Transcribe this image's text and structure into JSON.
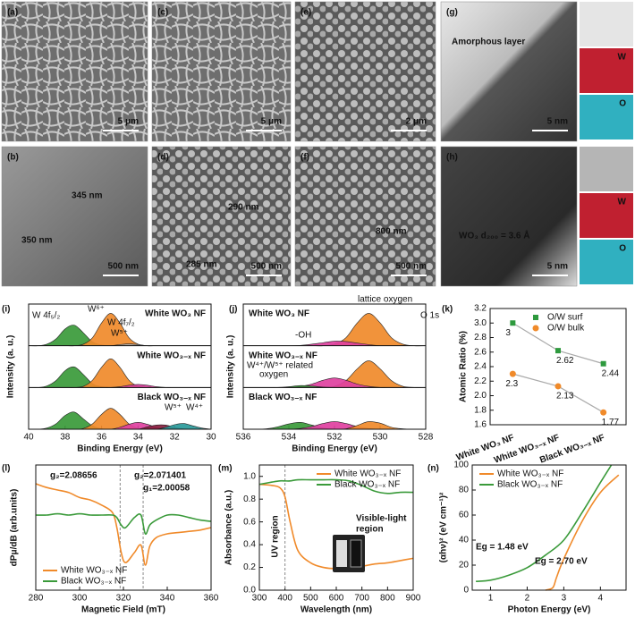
{
  "image_panels": [
    {
      "label": "(a)",
      "scale_bar": "5 μm",
      "annotations": []
    },
    {
      "label": "(c)",
      "scale_bar": "5 μm",
      "annotations": []
    },
    {
      "label": "(e)",
      "scale_bar": "2 μm",
      "annotations": []
    },
    {
      "label": "(g)",
      "scale_bar": "5 nm",
      "annotations": [
        "Amorphous layer"
      ],
      "side_labels": [
        "W",
        "O"
      ]
    },
    {
      "label": "(b)",
      "scale_bar": "500 nm",
      "annotations": [
        "345 nm",
        "350 nm"
      ]
    },
    {
      "label": "(d)",
      "scale_bar": "500 nm",
      "annotations": [
        "290 nm",
        "285 nm"
      ]
    },
    {
      "label": "(f)",
      "scale_bar": "500 nm",
      "annotations": [
        "800 nm"
      ]
    },
    {
      "label": "(h)",
      "scale_bar": "5 nm",
      "annotations": [
        "WO₃ d₂₀₀ = 3.6 Å"
      ],
      "side_labels": [
        "W",
        "O"
      ]
    }
  ],
  "chart_data": [
    {
      "type": "area",
      "panel_label": "(i)",
      "xlabel": "Binding Energy (eV)",
      "ylabel": "Intensity (a. u.)",
      "x": [
        40,
        39.5,
        39,
        38.5,
        38,
        37.5,
        37,
        36.5,
        36,
        35.5,
        35,
        34.5,
        34,
        33.5,
        33,
        32.5,
        32,
        31.5,
        31,
        30.5,
        30
      ],
      "xlim": [
        40,
        30
      ],
      "xticks": [
        40,
        38,
        36,
        34,
        32,
        30
      ],
      "ylim": [
        0,
        1
      ],
      "panels": [
        {
          "label": "White WO₃ NF",
          "annotations": [
            "W 4f₅/₂",
            "W⁶⁺",
            "W 4f₇/₂",
            "W⁵⁺"
          ],
          "series": [
            {
              "color": "#3a9a3a",
              "values": [
                0,
                0,
                0.04,
                0.18,
                0.44,
                0.54,
                0.34,
                0.1,
                0.02,
                0,
                0,
                0,
                0,
                0,
                0,
                0,
                0,
                0,
                0,
                0,
                0
              ]
            },
            {
              "color": "#f08a2a",
              "values": [
                0,
                0,
                0,
                0,
                0,
                0,
                0.04,
                0.21,
                0.6,
                0.85,
                0.6,
                0.21,
                0.04,
                0,
                0,
                0,
                0,
                0,
                0,
                0,
                0
              ]
            },
            {
              "color": "#b0b0b0",
              "values": [
                0,
                0,
                0,
                0,
                0,
                0,
                0,
                0,
                0,
                0,
                0.03,
                0.05,
                0.03,
                0,
                0,
                0,
                0,
                0,
                0,
                0,
                0
              ]
            }
          ]
        },
        {
          "label": "White WO₃₋ₓ NF",
          "annotations": [],
          "series": [
            {
              "color": "#3a9a3a",
              "values": [
                0,
                0,
                0.04,
                0.18,
                0.44,
                0.54,
                0.34,
                0.1,
                0.02,
                0,
                0,
                0,
                0,
                0,
                0,
                0,
                0,
                0,
                0,
                0,
                0
              ]
            },
            {
              "color": "#f08a2a",
              "values": [
                0,
                0,
                0,
                0,
                0,
                0,
                0.03,
                0.19,
                0.53,
                0.75,
                0.53,
                0.19,
                0.03,
                0,
                0,
                0,
                0,
                0,
                0,
                0,
                0
              ]
            },
            {
              "color": "#e040a0",
              "values": [
                0,
                0,
                0,
                0,
                0,
                0,
                0,
                0,
                0,
                0,
                0.02,
                0.06,
                0.08,
                0.06,
                0.02,
                0,
                0,
                0,
                0,
                0,
                0
              ]
            }
          ]
        },
        {
          "label": "Black WO₃₋ₓ NF",
          "annotations": [
            "W⁵⁺",
            "W⁴⁺"
          ],
          "series": [
            {
              "color": "#3a9a3a",
              "values": [
                0,
                0,
                0.03,
                0.14,
                0.36,
                0.45,
                0.27,
                0.09,
                0.01,
                0,
                0,
                0,
                0,
                0,
                0,
                0,
                0,
                0,
                0,
                0,
                0
              ]
            },
            {
              "color": "#f08a2a",
              "values": [
                0,
                0,
                0,
                0,
                0,
                0,
                0.02,
                0.14,
                0.39,
                0.55,
                0.39,
                0.14,
                0.02,
                0,
                0,
                0,
                0,
                0,
                0,
                0,
                0
              ]
            },
            {
              "color": "#e040a0",
              "values": [
                0,
                0,
                0,
                0,
                0,
                0,
                0,
                0,
                0,
                0,
                0.05,
                0.13,
                0.18,
                0.13,
                0.05,
                0,
                0,
                0,
                0,
                0,
                0
              ]
            },
            {
              "color": "#8b2040",
              "values": [
                0,
                0,
                0,
                0,
                0,
                0,
                0,
                0,
                0,
                0,
                0,
                0,
                0,
                0.06,
                0.11,
                0.11,
                0.05,
                0.01,
                0,
                0,
                0
              ]
            },
            {
              "color": "#2a9a9a",
              "values": [
                0,
                0,
                0,
                0,
                0,
                0,
                0,
                0,
                0,
                0,
                0,
                0,
                0,
                0,
                0,
                0.05,
                0.12,
                0.15,
                0.09,
                0.03,
                0
              ]
            }
          ]
        }
      ]
    },
    {
      "type": "area",
      "panel_label": "(j)",
      "xlabel": "Binding Energy (eV)",
      "ylabel": "Intensity (a. u.)",
      "x": [
        536,
        535.5,
        535,
        534.5,
        534,
        533.5,
        533,
        532.5,
        532,
        531.5,
        531,
        530.5,
        530,
        529.5,
        529,
        528.5,
        528
      ],
      "xlim": [
        536,
        528
      ],
      "xticks": [
        536,
        534,
        532,
        530,
        528
      ],
      "ylim": [
        0,
        1
      ],
      "panels": [
        {
          "label": "White WO₃ NF",
          "annotations": [
            "lattice oxygen",
            "O 1s",
            "-OH"
          ],
          "series": [
            {
              "color": "#f08a2a",
              "values": [
                0,
                0,
                0,
                0,
                0,
                0,
                0,
                0,
                0.04,
                0.21,
                0.6,
                0.85,
                0.6,
                0.21,
                0.04,
                0,
                0
              ]
            },
            {
              "color": "#e040a0",
              "values": [
                0,
                0,
                0,
                0,
                0,
                0.01,
                0.04,
                0.08,
                0.12,
                0.11,
                0.07,
                0.03,
                0,
                0,
                0,
                0,
                0
              ]
            }
          ]
        },
        {
          "label": "White WO₃₋ₓ NF",
          "annotations": [
            "W⁴⁺/W⁵⁺ related",
            "oxygen"
          ],
          "series": [
            {
              "color": "#f08a2a",
              "values": [
                0,
                0,
                0,
                0,
                0,
                0,
                0,
                0,
                0.03,
                0.18,
                0.49,
                0.7,
                0.49,
                0.18,
                0.03,
                0,
                0
              ]
            },
            {
              "color": "#e040a0",
              "values": [
                0,
                0,
                0,
                0,
                0,
                0.03,
                0.09,
                0.19,
                0.25,
                0.19,
                0.09,
                0.03,
                0,
                0,
                0,
                0,
                0
              ]
            },
            {
              "color": "#3a9a3a",
              "values": [
                0,
                0,
                0,
                0,
                0.02,
                0.05,
                0.04,
                0.01,
                0,
                0,
                0,
                0,
                0,
                0,
                0,
                0,
                0
              ]
            }
          ]
        },
        {
          "label": "Black WO₃₋ₓ NF",
          "annotations": [],
          "series": [
            {
              "color": "#3a9a3a",
              "values": [
                0,
                0,
                0.01,
                0.06,
                0.14,
                0.18,
                0.11,
                0.03,
                0,
                0,
                0,
                0,
                0,
                0,
                0,
                0,
                0
              ]
            },
            {
              "color": "#e040a0",
              "values": [
                0,
                0,
                0,
                0,
                0,
                0.02,
                0.07,
                0.15,
                0.2,
                0.15,
                0.07,
                0.02,
                0,
                0,
                0,
                0,
                0
              ]
            },
            {
              "color": "#f08a2a",
              "values": [
                0,
                0,
                0,
                0,
                0,
                0,
                0,
                0,
                0,
                0.01,
                0.1,
                0.2,
                0.16,
                0.05,
                0.01,
                0,
                0
              ]
            }
          ]
        }
      ]
    },
    {
      "type": "category",
      "panel_label": "(k)",
      "ylabel": "Atomic Ratio (%)",
      "categories": [
        "White WO₃ NF",
        "White WO₃₋ₓ NF",
        "Black WO₃₋ₓ NF"
      ],
      "ylim": [
        1.6,
        3.2
      ],
      "yticks": [
        1.6,
        1.8,
        {
          "value": 2,
          "label": "2.0"
        },
        2.2,
        2.4,
        2.6,
        2.8,
        {
          "value": 3,
          "label": "3.0"
        },
        3.2
      ],
      "line_color": "#aaaaaa",
      "legend": "upper right",
      "series": [
        {
          "name": "O/W surf",
          "color": "#2e9a3e",
          "marker": "square",
          "values": [
            3,
            2.62,
            2.44
          ]
        },
        {
          "name": "O/W bulk",
          "color": "#f08a2a",
          "marker": "circle",
          "values": [
            2.3,
            2.13,
            1.77
          ]
        }
      ]
    },
    {
      "type": "line",
      "panel_label": "(l)",
      "xlabel": "Magnetic Field (mT)",
      "ylabel": "dPμ/dB (arb.units)",
      "x": [
        280,
        285,
        290,
        295,
        300,
        305,
        310,
        315,
        317,
        319,
        321,
        325,
        328,
        330,
        332,
        335,
        340,
        345,
        350,
        355,
        360
      ],
      "xlim": [
        280,
        360
      ],
      "xticks": [
        280,
        300,
        320,
        340,
        360
      ],
      "ylim": [
        0,
        1
      ],
      "legend": "lower left",
      "vlines": [
        318.5,
        329
      ],
      "annotations": [
        "g₂=2.08656",
        "g₂=2.071401",
        "g₁=2.00058"
      ],
      "series": [
        {
          "name": "White WO₃₋ₓ NF",
          "color": "#f08a2a",
          "values": [
            0.85,
            0.82,
            0.8,
            0.78,
            0.74,
            0.72,
            0.68,
            0.62,
            0.5,
            0.3,
            0.22,
            0.3,
            0.36,
            0.2,
            0.35,
            0.42,
            0.45,
            0.46,
            0.47,
            0.48,
            0.5
          ]
        },
        {
          "name": "Black WO₃₋ₓ NF",
          "color": "#3a9a3a",
          "values": [
            0.6,
            0.6,
            0.61,
            0.6,
            0.61,
            0.6,
            0.6,
            0.6,
            0.58,
            0.52,
            0.5,
            0.58,
            0.6,
            0.45,
            0.52,
            0.56,
            0.6,
            0.6,
            0.58,
            0.56,
            0.55
          ]
        }
      ]
    },
    {
      "type": "line",
      "panel_label": "(m)",
      "xlabel": "Wavelength (nm)",
      "ylabel": "Absorbance (a.u.)",
      "x": [
        300,
        350,
        380,
        400,
        420,
        450,
        500,
        550,
        600,
        650,
        700,
        750,
        800,
        850,
        900
      ],
      "xlim": [
        300,
        900
      ],
      "xticks": [
        300,
        400,
        500,
        600,
        700,
        800,
        900
      ],
      "ylim": [
        0,
        1.1
      ],
      "yticks": [
        {
          "value": 0,
          "label": "0.0"
        },
        0.2,
        0.4,
        0.6,
        0.8,
        {
          "value": 1,
          "label": "1.0"
        }
      ],
      "legend": "upper right",
      "vlines": [
        400
      ],
      "annotations": [
        "UV region",
        "Visible-light",
        "region"
      ],
      "series": [
        {
          "name": "White WO₃₋ₓ NF",
          "color": "#f08a2a",
          "values": [
            0.93,
            0.92,
            0.9,
            0.82,
            0.6,
            0.35,
            0.24,
            0.2,
            0.19,
            0.2,
            0.21,
            0.23,
            0.24,
            0.26,
            0.28
          ]
        },
        {
          "name": "Black WO₃₋ₓ NF",
          "color": "#3a9a3a",
          "values": [
            0.93,
            0.95,
            0.96,
            0.96,
            0.96,
            0.97,
            0.97,
            0.97,
            0.97,
            0.96,
            0.92,
            0.87,
            0.85,
            0.86,
            0.86
          ]
        }
      ]
    },
    {
      "type": "line",
      "panel_label": "(n)",
      "xlabel": "Photon Energy (eV)",
      "ylabel": "(αhν)² (eV cm⁻¹)²",
      "xlim": [
        0.5,
        4.7
      ],
      "xticks": [
        1,
        2,
        3,
        4
      ],
      "ylim": [
        0,
        100
      ],
      "yticks": [
        0,
        20,
        40,
        60,
        80,
        100
      ],
      "legend": "upper left",
      "annotations": [
        "Eg = 1.48 eV",
        "Eg = 2.70 eV"
      ],
      "series": [
        {
          "name": "White WO₃₋ₓ NF",
          "color": "#f08a2a",
          "x": [
            2.5,
            2.7,
            2.8,
            3,
            3.5,
            4,
            4.5
          ],
          "values": [
            0,
            2,
            10,
            25,
            55,
            78,
            92
          ]
        },
        {
          "name": "Black WO₃₋ₓ NF",
          "color": "#3a9a3a",
          "x": [
            0.6,
            1,
            1.5,
            2,
            2.5,
            3,
            3.5,
            4,
            4.3
          ],
          "values": [
            7,
            8,
            12,
            18,
            28,
            40,
            62,
            86,
            100
          ]
        }
      ]
    }
  ]
}
